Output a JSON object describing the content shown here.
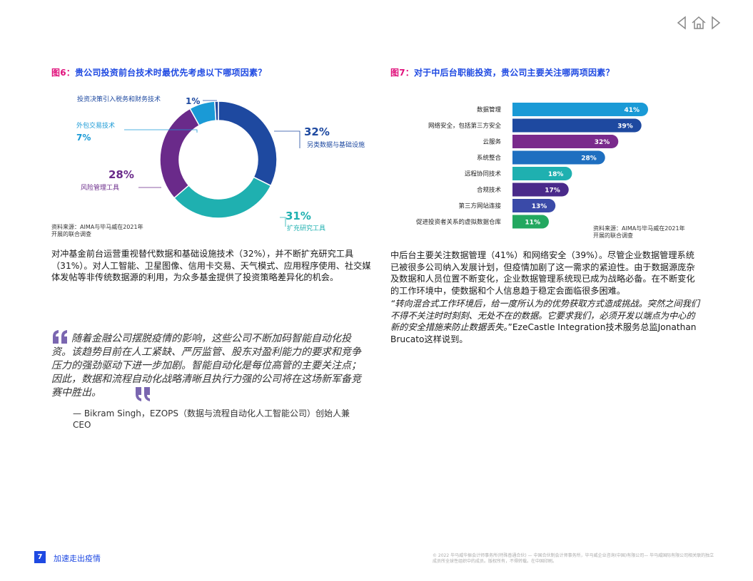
{
  "fig6": {
    "label": "图6：",
    "title": "贵公司投资前台技术时最优先考虑以下哪项因素？",
    "source": "资料来源：AIMA与毕马威在2021年开展的联合调查",
    "chart_data": {
      "type": "pie",
      "slices": [
        {
          "name": "另类数据与基础设施",
          "value": 32,
          "label": "32%",
          "color": "#1e49a0"
        },
        {
          "name": "扩充研究工具",
          "value": 31,
          "label": "31%",
          "color": "#1fb0b0"
        },
        {
          "name": "风险管理工具",
          "value": 28,
          "label": "28%",
          "color": "#6a2a8a"
        },
        {
          "name": "外包交易技术",
          "value": 7,
          "label": "7%",
          "color": "#1a9ad6"
        },
        {
          "name": "投资决策引入税务和财务技术",
          "value": 1,
          "label": "1%",
          "color": "#1e49a0"
        }
      ]
    }
  },
  "fig7": {
    "label": "图7：",
    "title": "对于中后台职能投资，贵公司主要关注哪两项因素？",
    "source": "资料来源：AIMA与毕马威在2021年开展的联合调查",
    "chart_data": {
      "type": "bar",
      "orientation": "horizontal",
      "categories": [
        "数据管理",
        "网络安全，包括第三方安全",
        "云服务",
        "系统整合",
        "远程协同技术",
        "合规技术",
        "第三方网站连接",
        "促进投资者关系的虚拟数据仓库"
      ],
      "values": [
        41,
        39,
        32,
        28,
        18,
        17,
        13,
        11
      ],
      "labels": [
        "41%",
        "39%",
        "32%",
        "28%",
        "18%",
        "17%",
        "13%",
        "11%"
      ],
      "colors": [
        "#1a9ad6",
        "#1e49a0",
        "#7a2a8c",
        "#1e6fc0",
        "#1fb0b0",
        "#4a2a8a",
        "#3a4aa8",
        "#23a860"
      ]
    }
  },
  "left_para": "对冲基金前台运营重视替代数据和基础设施技术（32%），并不断扩充研究工具（31%）。对人工智能、卫星图像、信用卡交易、天气模式、应用程序使用、社交媒体发帖等非传统数据源的利用，为众多基金提供了投资策略差异化的机会。",
  "quote": {
    "text": "随着金融公司摆脱疫情的影响，这些公司不断加码智能自动化投资。该趋势目前在人工紧缺、严厉监管、股东对盈利能力的要求和竞争压力的强劲驱动下进一步加剧。智能自动化是每位高管的主要关注点；因此，数据和流程自动化战略清晰且执行力强的公司将在这场新军备竞赛中胜出。",
    "attribution": "— Bikram Singh，EZOPS（数据与流程自动化人工智能公司）创始人兼CEO"
  },
  "right_para": "中后台主要关注数据管理（41%）和网络安全（39%）。尽管企业数据管理系统已被很多公司纳入发展计划，但疫情加剧了这一需求的紧迫性。由于数据源庞杂及数据和人员位置不断变化，企业数据管理系统现已成为战略必备。在不断变化的工作环境中，使数据和个人信息趋于稳定会面临很多困难。",
  "right_quote_italic": "“转向混合式工作环境后，给一度所认为的优势获取方式造成挑战。突然之间我们不得不关注时时刻刻、无处不在的数据。它要求我们，必须开发以端点为中心的新的安全措施来防止数据丢失。",
  "right_quote_normal": "”EzeCastle Integration技术服务总监Jonathan Brucato这样说到。",
  "footer": {
    "page_number": "7",
    "title": "加速走出疫情",
    "note": "© 2022 毕马威华振会计师事务所(特殊普通合伙) — 中国合伙制会计师事务所，毕马威企业咨询(中国)有限公司— 毕马威国际有限公司相关联的独立成员所全球性组织中的成员。版权所有，不得转载。在中国印刷。"
  },
  "icons": [
    "prev-arrow-icon",
    "home-icon",
    "next-arrow-icon",
    "quote-open-icon",
    "quote-close-icon"
  ]
}
